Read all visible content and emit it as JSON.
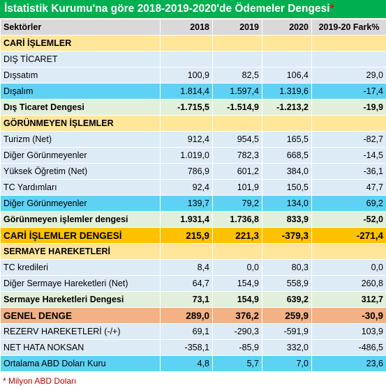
{
  "title": "İstatistik Kurumu'na göre 2018-2019-2020'de Ödemeler Dengesi",
  "title_star": "*",
  "header": {
    "sector": "Sektörler",
    "y2018": "2018",
    "y2019": "2019",
    "y2020": "2020",
    "diff": "2019-20 Fark%"
  },
  "rows": [
    {
      "label": "CARİ İŞLEMLER",
      "v2018": "",
      "v2019": "",
      "v2020": "",
      "diff": "",
      "style": "sec"
    },
    {
      "label": "DIŞ TİCARET",
      "v2018": "",
      "v2019": "",
      "v2020": "",
      "diff": "",
      "style": "light"
    },
    {
      "label": "Dışsatım",
      "v2018": "100,9",
      "v2019": "82,5",
      "v2020": "106,4",
      "diff": "29,0",
      "style": "light"
    },
    {
      "label": "Dışalım",
      "v2018": "1.814,4",
      "v2019": "1.597,4",
      "v2020": "1.319,6",
      "diff": "-17,4",
      "style": "blue"
    },
    {
      "label": "Dış Ticaret Dengesi",
      "v2018": "-1.715,5",
      "v2019": "-1.514,9",
      "v2020": "-1.213,2",
      "diff": "-19,9",
      "style": "green"
    },
    {
      "label": "GÖRÜNMEYEN İŞLEMLER",
      "v2018": "",
      "v2019": "",
      "v2020": "",
      "diff": "",
      "style": "sec"
    },
    {
      "label": "Turizm (Net)",
      "v2018": "912,4",
      "v2019": "954,5",
      "v2020": "165,5",
      "diff": "-82,7",
      "style": "light"
    },
    {
      "label": "Diğer Görünmeyenler",
      "v2018": "1.019,0",
      "v2019": "782,3",
      "v2020": "668,5",
      "diff": "-14,5",
      "style": "light"
    },
    {
      "label": "Yüksek Öğretim (Net)",
      "v2018": "786,9",
      "v2019": "601,2",
      "v2020": "384,0",
      "diff": "-36,1",
      "style": "light"
    },
    {
      "label": "TC Yardımları",
      "v2018": "92,4",
      "v2019": "101,9",
      "v2020": "150,5",
      "diff": "47,7",
      "style": "light"
    },
    {
      "label": "Diğer Görünmeyenler",
      "v2018": "139,7",
      "v2019": "79,2",
      "v2020": "134,0",
      "diff": "69,2",
      "style": "blue"
    },
    {
      "label": "Görünmeyen işlemler dengesi",
      "v2018": "1.931,4",
      "v2019": "1.736,8",
      "v2020": "833,9",
      "diff": "-52,0",
      "style": "green"
    },
    {
      "label": "CARİ İŞLEMLER DENGESİ",
      "v2018": "215,9",
      "v2019": "221,3",
      "v2020": "-379,3",
      "diff": "-271,4",
      "style": "orange"
    },
    {
      "label": "SERMAYE HAREKETLERİ",
      "v2018": "",
      "v2019": "",
      "v2020": "",
      "diff": "",
      "style": "sec"
    },
    {
      "label": "TC kredileri",
      "v2018": "8,4",
      "v2019": "0,0",
      "v2020": "80,3",
      "diff": "0,0",
      "style": "light"
    },
    {
      "label": "Diğer Sermaye Hareketleri (Net)",
      "v2018": "64,7",
      "v2019": "154,9",
      "v2020": "558,9",
      "diff": "260,8",
      "style": "light"
    },
    {
      "label": "Sermaye Hareketleri Dengesi",
      "v2018": "73,1",
      "v2019": "154,9",
      "v2020": "639,2",
      "diff": "312,7",
      "style": "green"
    },
    {
      "label": "GENEL DENGE",
      "v2018": "289,0",
      "v2019": "376,2",
      "v2020": "259,9",
      "diff": "-30,9",
      "style": "salmon"
    },
    {
      "label": "REZERV HAREKETLERİ (-/+)",
      "v2018": "69,1",
      "v2019": "-290,3",
      "v2020": "-591,9",
      "diff": "103,9",
      "style": "light"
    },
    {
      "label": "NET HATA NOKSAN",
      "v2018": "-358,1",
      "v2019": "-85,9",
      "v2020": "332,0",
      "diff": "-486,5",
      "style": "light"
    },
    {
      "label": "Ortalama ABD Doları Kuru",
      "v2018": "4,8",
      "v2019": "5,7",
      "v2020": "7,0",
      "diff": "23,6",
      "style": "blue"
    }
  ],
  "footnote": "* Milyon ABD Doları",
  "colors": {
    "title_bg": "#00b050",
    "header_bg": "#d9d9d9",
    "section_bg": "#ffe699",
    "light_row_bg": "#ddebf7",
    "blue_row_bg": "#5dd2f5",
    "green_row_bg": "#e2efda",
    "orange_row_bg": "#ffc000",
    "salmon_row_bg": "#f4b183",
    "footnote": "#c00000"
  }
}
